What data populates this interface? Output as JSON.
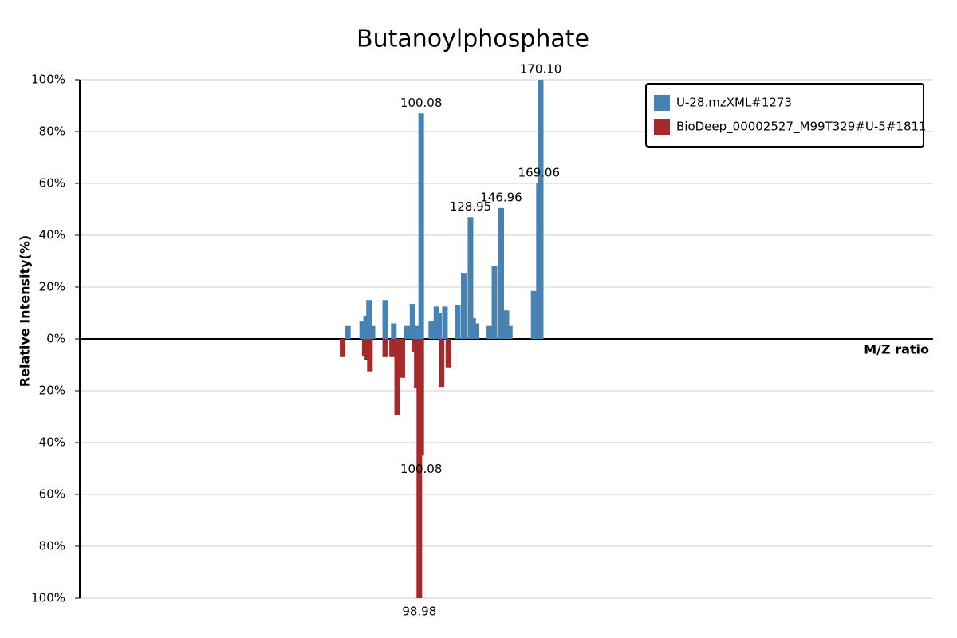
{
  "chart_data": {
    "type": "bar",
    "title": "Butanoylphosphate",
    "y_label": "Relative Intensity(%)",
    "x_label": "M/Z ratio",
    "xlim": [
      -100,
      400
    ],
    "ylim": [
      -100,
      100
    ],
    "yticks": [
      {
        "value": 100,
        "label": "100%"
      },
      {
        "value": 80,
        "label": "80%"
      },
      {
        "value": 60,
        "label": "60%"
      },
      {
        "value": 40,
        "label": "40%"
      },
      {
        "value": 20,
        "label": "20%"
      },
      {
        "value": 0,
        "label": "0%"
      },
      {
        "value": -20,
        "label": "20%"
      },
      {
        "value": -40,
        "label": "40%"
      },
      {
        "value": -60,
        "label": "60%"
      },
      {
        "value": -80,
        "label": "80%"
      },
      {
        "value": -100,
        "label": "100%"
      }
    ],
    "grid": true,
    "legend_position": "top-right",
    "series": [
      {
        "name": "U-28.mzXML#1273",
        "color": "#4682b4",
        "direction": "up",
        "x": [
          57.1,
          65.5,
          67.8,
          69.5,
          71.5,
          79,
          84,
          91.8,
          95,
          97.5,
          100.08,
          106,
          109,
          110.5,
          114,
          121.5,
          125,
          128.95,
          130.5,
          132.5,
          140,
          143,
          146.96,
          148.5,
          150,
          152,
          166,
          169.06,
          170.1
        ],
        "values": [
          5,
          7,
          9,
          15,
          5,
          15,
          6,
          5,
          13.5,
          5,
          87,
          7,
          12.5,
          10,
          12.5,
          13,
          25.5,
          47,
          8,
          6,
          5,
          28,
          50.5,
          8,
          11,
          5,
          18.5,
          60,
          100
        ],
        "x_labels": [
          null,
          null,
          null,
          null,
          null,
          null,
          null,
          null,
          null,
          null,
          "100.08",
          null,
          null,
          null,
          null,
          null,
          null,
          "128.95",
          null,
          null,
          null,
          null,
          "146.96",
          null,
          null,
          null,
          null,
          "169.06",
          "170.10"
        ]
      },
      {
        "name": "BioDeep_00002527_M99T329#U-5#1811",
        "color": "#a52a2a",
        "direction": "down",
        "x": [
          54,
          67,
          68.5,
          70,
          79,
          83,
          86,
          89,
          96,
          97.5,
          98.98,
          100.08,
          112,
          116
        ],
        "values": [
          7,
          6.5,
          8,
          12.5,
          7,
          7,
          29.5,
          15,
          5,
          19,
          100,
          45,
          18.5,
          11
        ],
        "x_labels": [
          null,
          null,
          null,
          null,
          null,
          null,
          null,
          null,
          null,
          null,
          "98.98",
          "100.08",
          null,
          null
        ]
      }
    ]
  }
}
